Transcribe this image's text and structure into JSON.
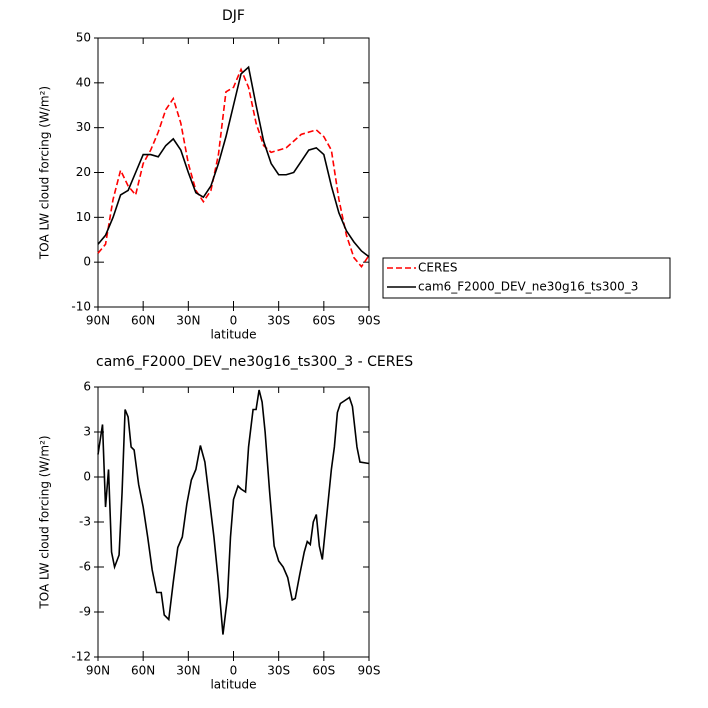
{
  "chart_data": [
    {
      "type": "line",
      "title": "DJF",
      "xlabel": "latitude",
      "ylabel": "TOA LW cloud forcing (W/m²)",
      "x": [
        90,
        85,
        80,
        75,
        70,
        65,
        60,
        55,
        50,
        45,
        40,
        35,
        30,
        25,
        20,
        15,
        10,
        5,
        0,
        -5,
        -10,
        -15,
        -20,
        -25,
        -30,
        -35,
        -40,
        -45,
        -50,
        -55,
        -60,
        -65,
        -70,
        -75,
        -80,
        -85,
        -90
      ],
      "series": [
        {
          "name": "CERES",
          "color": "#ff0000",
          "dashed": true,
          "values": [
            2,
            4,
            14,
            20.5,
            17,
            15,
            22,
            25,
            29,
            34,
            36.5,
            31,
            22,
            16,
            13.5,
            16,
            24,
            38,
            39,
            43,
            39,
            31,
            26,
            24.5,
            25,
            25.5,
            27,
            28.5,
            29,
            29.5,
            28,
            25,
            14,
            6,
            1,
            -1,
            1.5
          ]
        },
        {
          "name": "cam6_F2000_DEV_ne30g16_ts300_3",
          "color": "#000000",
          "dashed": false,
          "values": [
            4,
            6,
            10,
            15,
            16,
            20,
            24,
            24,
            23.5,
            26,
            27.5,
            25,
            20,
            15.5,
            14.5,
            17,
            22,
            28,
            35,
            42,
            43.5,
            35,
            27,
            22,
            19.5,
            19.5,
            20,
            22.5,
            25,
            25.5,
            24,
            17,
            11,
            7,
            4.5,
            2.5,
            1.2
          ]
        }
      ],
      "xlim": [
        90,
        -90
      ],
      "xticks": [
        {
          "value": 90,
          "label": "90N"
        },
        {
          "value": 60,
          "label": "60N"
        },
        {
          "value": 30,
          "label": "30N"
        },
        0,
        {
          "value": -30,
          "label": "30S"
        },
        {
          "value": -60,
          "label": "60S"
        },
        {
          "value": -90,
          "label": "90S"
        }
      ],
      "ylim": [
        -10,
        50
      ],
      "yticks": [
        -10,
        0,
        10,
        20,
        30,
        40,
        50
      ],
      "grid": false,
      "legend": "right"
    },
    {
      "type": "line",
      "title": "cam6_F2000_DEV_ne30g16_ts300_3 - CERES",
      "xlabel": "latitude",
      "ylabel": "TOA LW cloud forcing (W/m²)",
      "x": [
        90,
        87,
        85,
        83,
        81,
        79,
        76,
        74,
        72,
        70,
        68,
        66,
        63,
        60,
        57,
        54,
        51,
        48,
        46,
        43,
        40,
        37,
        34,
        31,
        28,
        25,
        22,
        19,
        16,
        13,
        10,
        7,
        4,
        2,
        0,
        -3,
        -5,
        -8,
        -10,
        -13,
        -15,
        -17,
        -19,
        -21,
        -24,
        -27,
        -30,
        -33,
        -36,
        -39,
        -41,
        -44,
        -47,
        -49,
        -51,
        -53,
        -55,
        -57,
        -59,
        -62,
        -65,
        -67,
        -69,
        -71,
        -74,
        -77,
        -79,
        -82,
        -84,
        -90
      ],
      "series": [
        {
          "color": "#000000",
          "dashed": false,
          "values": [
            1.5,
            3.5,
            -2,
            0.5,
            -5,
            -6,
            -5.2,
            -1,
            4.5,
            4,
            2,
            1.8,
            -0.5,
            -2,
            -4,
            -6.2,
            -7.7,
            -7.7,
            -9.2,
            -9.5,
            -7,
            -4.7,
            -4,
            -1.8,
            -0.2,
            0.5,
            2.1,
            1,
            -1.5,
            -4,
            -7,
            -10.5,
            -8,
            -4,
            -1.5,
            -0.6,
            -0.8,
            -1,
            2,
            4.5,
            4.5,
            5.8,
            5,
            3,
            -1,
            -4.6,
            -5.6,
            -6,
            -6.7,
            -8.2,
            -8.1,
            -6.5,
            -5,
            -4.3,
            -4.5,
            -3,
            -2.5,
            -4.6,
            -5.5,
            -2.5,
            0.5,
            2,
            4.3,
            4.9,
            5.1,
            5.3,
            4.7,
            2,
            1,
            0.9
          ]
        }
      ],
      "xlim": [
        90,
        -90
      ],
      "xticks": [
        {
          "value": 90,
          "label": "90N"
        },
        {
          "value": 60,
          "label": "60N"
        },
        {
          "value": 30,
          "label": "30N"
        },
        0,
        {
          "value": -30,
          "label": "30S"
        },
        {
          "value": -60,
          "label": "60S"
        },
        {
          "value": -90,
          "label": "90S"
        }
      ],
      "ylim": [
        -12,
        6
      ],
      "yticks": [
        -12,
        -9,
        -6,
        -3,
        0,
        3,
        6
      ],
      "grid": false
    }
  ]
}
